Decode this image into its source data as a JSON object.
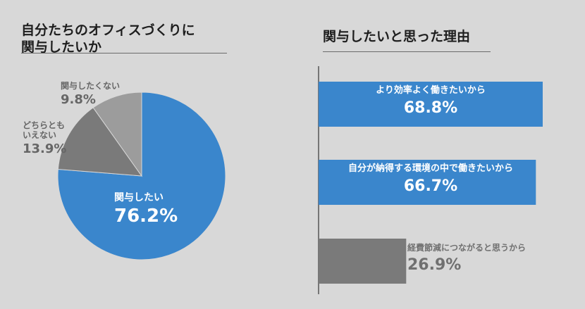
{
  "chart_data": [
    {
      "type": "pie",
      "title": "自分たちのオフィスづくりに関与したいか",
      "title_lines": [
        "自分たちのオフィスづくりに",
        "関与したいか"
      ],
      "slices": [
        {
          "label": "関与したい",
          "value": 76.2,
          "display": "76.2%",
          "color": "#3a86cc"
        },
        {
          "label": "どちらともいえない",
          "label_lines": [
            "どちらとも",
            "いえない"
          ],
          "value": 13.9,
          "display": "13.9%",
          "color": "#7a7a7a"
        },
        {
          "label": "関与したくない",
          "value": 9.8,
          "display": "9.8%",
          "color": "#9c9c9c"
        }
      ]
    },
    {
      "type": "bar",
      "orientation": "horizontal",
      "title": "関与したいと思った理由",
      "categories": [
        "より効率よく働きたいから",
        "自分が納得する環境の中で働きたいから",
        "経費節減につながると思うから"
      ],
      "values": [
        68.8,
        66.7,
        26.9
      ],
      "display": [
        "68.8%",
        "66.7%",
        "26.9%"
      ],
      "colors": [
        "#3a86cc",
        "#3a86cc",
        "#7a7a7a"
      ]
    }
  ]
}
